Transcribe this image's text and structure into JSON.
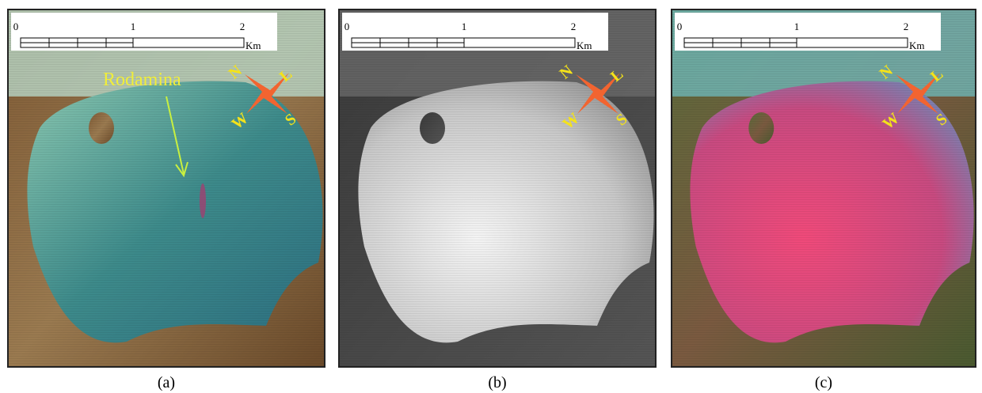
{
  "panels": [
    {
      "caption": "(a)",
      "scale": {
        "labels": [
          "0",
          "1",
          "2"
        ],
        "unit": "Km"
      },
      "compass": [
        "N",
        "L",
        "W",
        "S"
      ],
      "annotation": "Rodamina"
    },
    {
      "caption": "(b)",
      "scale": {
        "labels": [
          "0",
          "1",
          "2"
        ],
        "unit": "Km"
      },
      "compass": [
        "N",
        "L",
        "W",
        "S"
      ]
    },
    {
      "caption": "(c)",
      "scale": {
        "labels": [
          "0",
          "1",
          "2"
        ],
        "unit": "Km"
      },
      "compass": [
        "N",
        "L",
        "W",
        "S"
      ]
    }
  ]
}
